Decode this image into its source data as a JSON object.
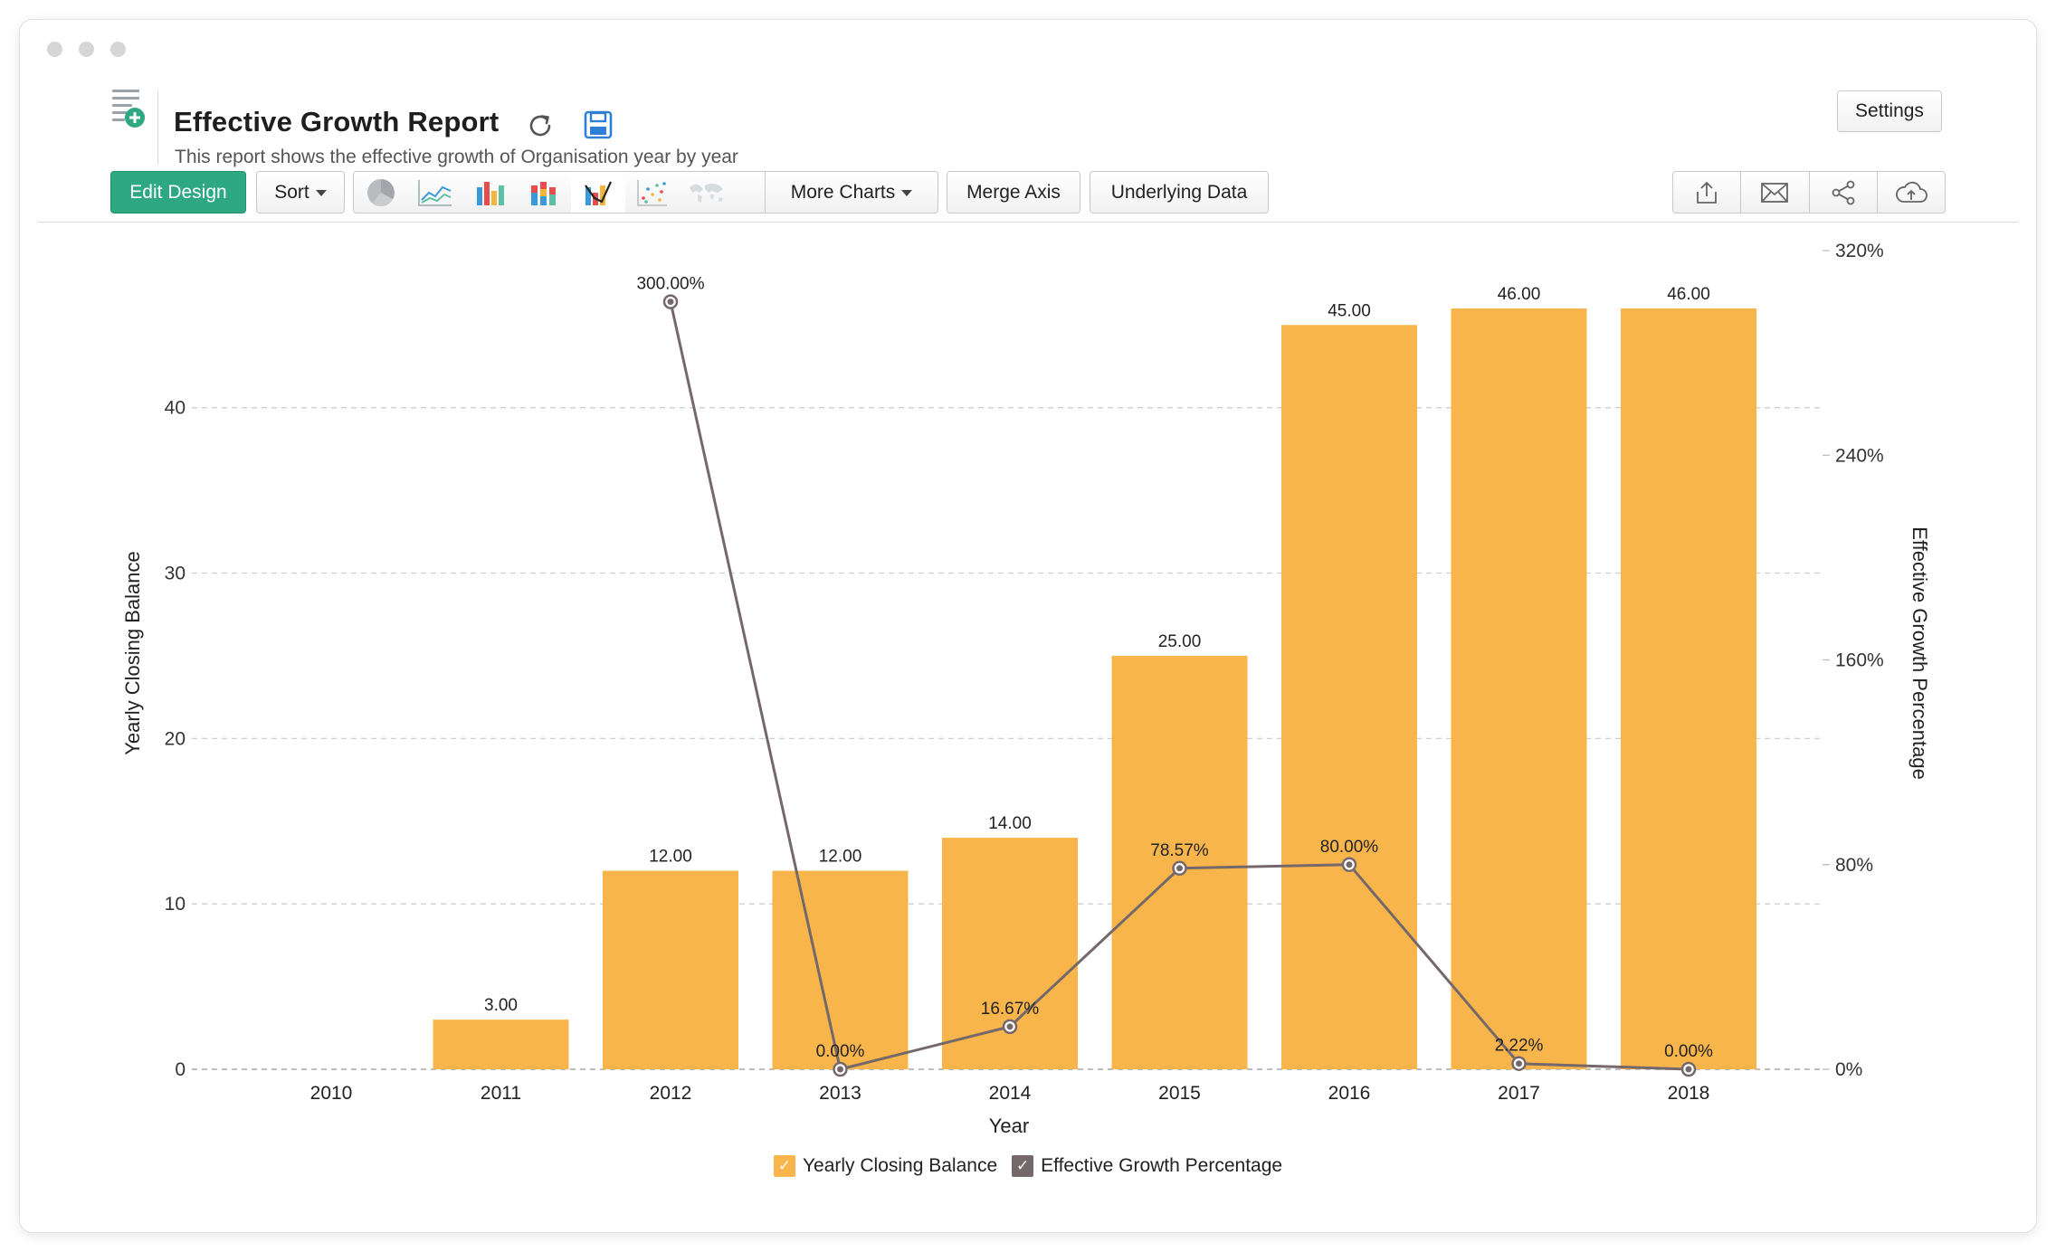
{
  "window": {
    "traffic_lights": [
      "close",
      "minimize",
      "maximize"
    ]
  },
  "header": {
    "title": "Effective Growth Report",
    "subtitle": "This report shows the effective growth of Organisation year by year",
    "settings_label": "Settings"
  },
  "toolbar": {
    "edit_design_label": "Edit Design",
    "sort_label": "Sort",
    "chart_types": [
      "pie",
      "line",
      "bar",
      "stacked-bar",
      "combination",
      "scatter",
      "map"
    ],
    "active_chart_type": "combination",
    "more_charts_label": "More Charts",
    "merge_axis_label": "Merge Axis",
    "underlying_data_label": "Underlying Data",
    "share_actions": [
      "export",
      "email",
      "share",
      "publish"
    ]
  },
  "colors": {
    "accent": "#2ea880",
    "bar": "#f8b54b",
    "line": "#75686a",
    "grid": "#cfcfcf"
  },
  "chart_data": {
    "type": "bar",
    "categories": [
      "2010",
      "2011",
      "2012",
      "2013",
      "2014",
      "2015",
      "2016",
      "2017",
      "2018"
    ],
    "series": [
      {
        "name": "Yearly Closing Balance",
        "type": "bar",
        "axis": "left",
        "values": [
          0,
          3,
          12,
          12,
          14,
          25,
          45,
          46,
          46
        ],
        "labels": [
          "",
          "3.00",
          "12.00",
          "12.00",
          "14.00",
          "25.00",
          "45.00",
          "46.00",
          "46.00"
        ]
      },
      {
        "name": "Effective Growth Percentage",
        "type": "line",
        "axis": "right",
        "values": [
          null,
          null,
          300,
          0,
          16.67,
          78.57,
          80,
          2.22,
          0
        ],
        "labels": [
          "",
          "",
          "300.00%",
          "0.00%",
          "16.67%",
          "78.57%",
          "80.00%",
          "2.22%",
          "0.00%"
        ]
      }
    ],
    "xlabel": "Year",
    "ylabel": "Yearly Closing Balance",
    "y2label": "Effective Growth Percentage",
    "ylim": [
      0,
      49.5
    ],
    "yticks": [
      0,
      10,
      20,
      30,
      40
    ],
    "ytick_labels": [
      "0",
      "10",
      "20",
      "30",
      "40"
    ],
    "y2lim": [
      0,
      320
    ],
    "y2ticks": [
      0,
      80,
      160,
      240,
      320
    ],
    "y2tick_labels": [
      "0%",
      "80%",
      "160%",
      "240%",
      "320%"
    ],
    "grid": true,
    "legend": "bottom-center"
  }
}
